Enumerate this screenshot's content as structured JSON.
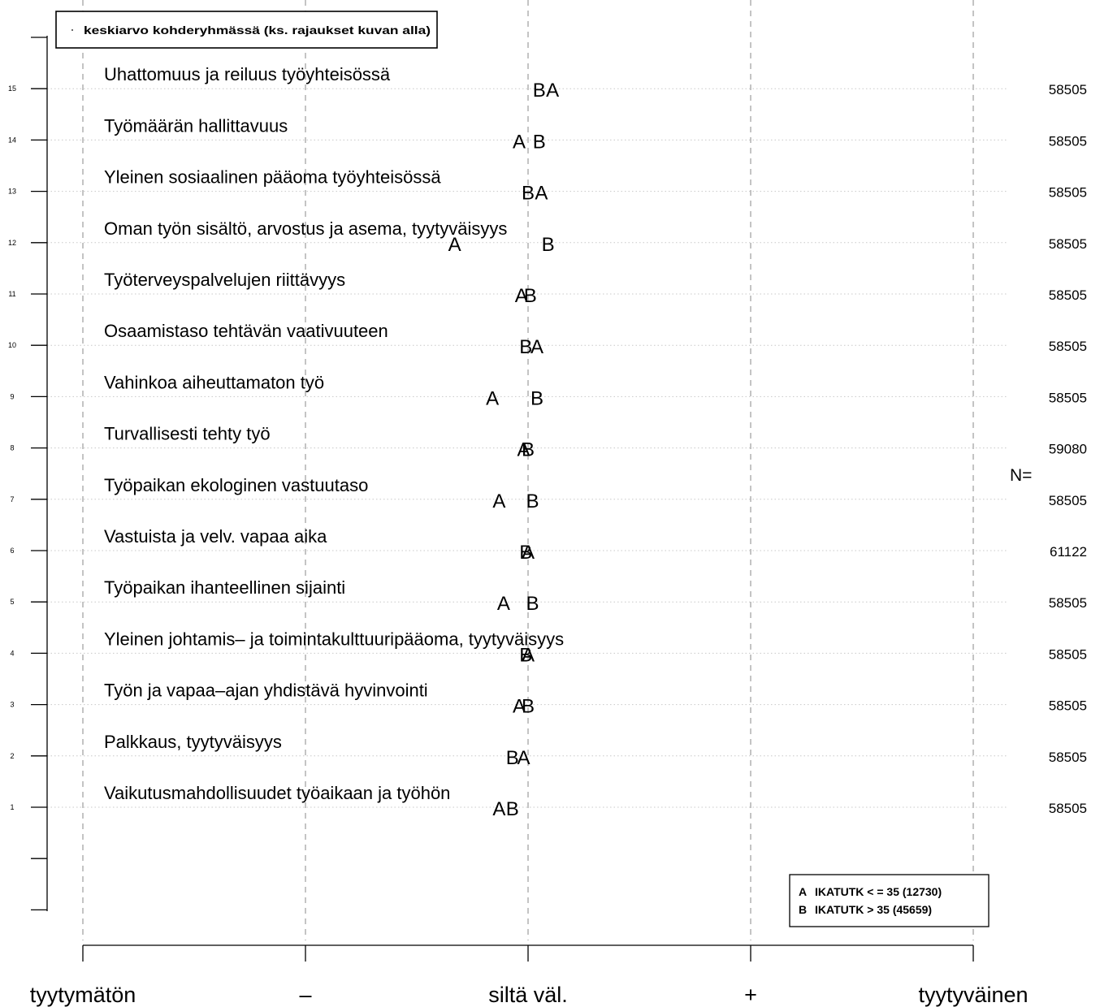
{
  "chart_data": {
    "type": "scatter",
    "x_scale": {
      "min": 1,
      "max": 5,
      "tick_values": [
        1,
        2,
        3,
        4,
        5
      ],
      "tick_labels": [
        "tyytymätön",
        "–",
        "siltä väl.",
        "+",
        "tyytyväinen"
      ]
    },
    "grid": "vertical dashed at each x tick, horizontal dotted at each item",
    "rows": [
      {
        "index": 15,
        "label": "Uhattomuus ja reiluus työyhteisössä",
        "A": 3.11,
        "B": 3.05,
        "n": "58505"
      },
      {
        "index": 14,
        "label": "Työmäärän hallittavuus",
        "A": 2.96,
        "B": 3.05,
        "n": "58505"
      },
      {
        "index": 13,
        "label": "Yleinen sosiaalinen pääoma työyhteisössä",
        "A": 3.06,
        "B": 3.0,
        "n": "58505"
      },
      {
        "index": 12,
        "label": "Oman työn sisältö, arvostus ja asema, tyytyväisyys",
        "A": 2.67,
        "B": 3.09,
        "n": "58505"
      },
      {
        "index": 11,
        "label": "Työterveyspalvelujen riittävyys",
        "A": 2.97,
        "B": 3.01,
        "n": "58505"
      },
      {
        "index": 10,
        "label": "Osaamistaso tehtävän vaativuuteen",
        "A": 3.04,
        "B": 2.99,
        "n": "58505"
      },
      {
        "index": 9,
        "label": "Vahinkoa aiheuttamaton työ",
        "A": 2.84,
        "B": 3.04,
        "n": "58505"
      },
      {
        "index": 8,
        "label": "Turvallisesti tehty työ",
        "A": 2.98,
        "B": 3.0,
        "n": "59080"
      },
      {
        "index": 7,
        "label": "Työpaikan ekologinen vastuutaso",
        "A": 2.87,
        "B": 3.02,
        "n": "58505"
      },
      {
        "index": 6,
        "label": "Vastuista ja velv. vapaa aika",
        "A": 3.0,
        "B": 2.99,
        "n": "61122"
      },
      {
        "index": 5,
        "label": "Työpaikan ihanteellinen sijainti",
        "A": 2.89,
        "B": 3.02,
        "n": "58505"
      },
      {
        "index": 4,
        "label": "Yleinen johtamis– ja toimintakulttuuripääoma, tyytyväisyys",
        "A": 3.0,
        "B": 2.99,
        "n": "58505"
      },
      {
        "index": 3,
        "label": "Työn ja vapaa–ajan yhdistävä hyvinvointi",
        "A": 2.96,
        "B": 3.0,
        "n": "58505"
      },
      {
        "index": 2,
        "label": "Palkkaus, tyytyväisyys",
        "A": 2.98,
        "B": 2.93,
        "n": "58505"
      },
      {
        "index": 1,
        "label": "Vaikutusmahdollisuudet työaikaan ja työhön",
        "A": 2.87,
        "B": 2.93,
        "n": "58505"
      }
    ],
    "series_legend": [
      {
        "code": "A",
        "label": "IKATUTK < = 35 (12730)"
      },
      {
        "code": "B",
        "label": "IKATUTK > 35 (45659)"
      }
    ],
    "top_legend": "keskiarvo kohderyhmässä (ks. rajaukset kuvan alla)",
    "n_label": "N=",
    "colors": {
      "n_label": "#006400",
      "grid": "#aaaaaa",
      "axis": "#000000"
    }
  }
}
